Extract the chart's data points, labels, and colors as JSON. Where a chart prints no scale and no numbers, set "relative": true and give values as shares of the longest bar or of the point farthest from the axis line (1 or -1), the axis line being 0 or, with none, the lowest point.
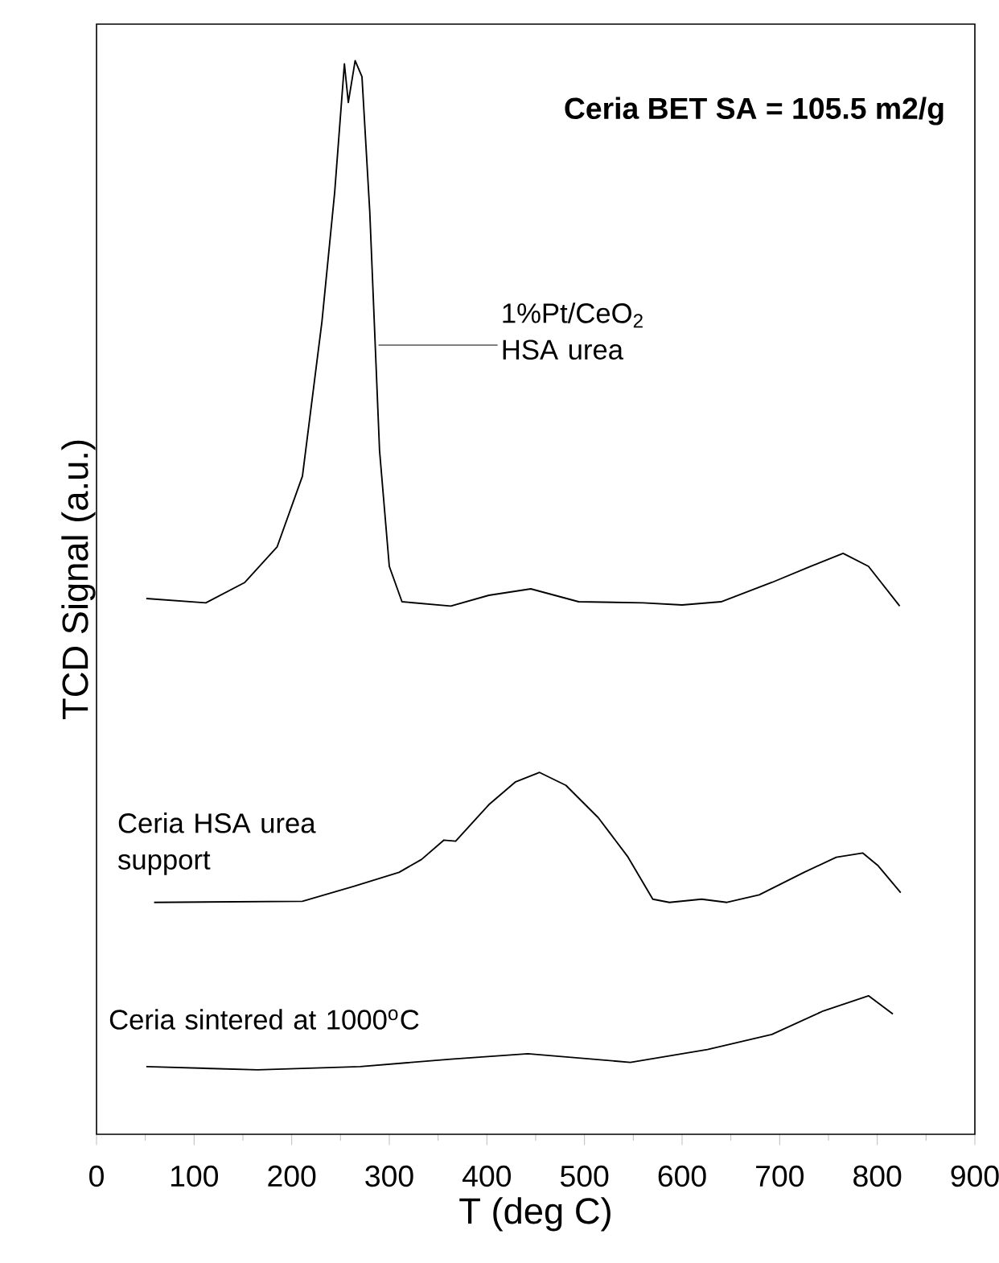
{
  "chart_data": {
    "type": "line",
    "xlabel": "T (deg C)",
    "ylabel": "TCD Signal (a.u.)",
    "relative": true,
    "annotations": [
      "Ceria BET SA = 105.5 m2/g"
    ],
    "xlim": [
      0,
      900
    ],
    "xticks": [
      0,
      100,
      200,
      300,
      400,
      500,
      600,
      700,
      800,
      900
    ],
    "series": [
      {
        "name": "1%Pt/CeO$_{2}$ HSA urea",
        "color": "#000000",
        "x": [
          51,
          112,
          152,
          185,
          211,
          231,
          244,
          254,
          258,
          265,
          272,
          280,
          290,
          300,
          313,
          363,
          402,
          445,
          494,
          560,
          600,
          640,
          692,
          732,
          765,
          791,
          823
        ],
        "values": [
          0.499,
          0.495,
          0.514,
          0.547,
          0.613,
          0.757,
          0.877,
          0.997,
          0.961,
          1,
          0.985,
          0.859,
          0.637,
          0.529,
          0.496,
          0.492,
          0.502,
          0.508,
          0.496,
          0.495,
          0.493,
          0.496,
          0.514,
          0.529,
          0.541,
          0.529,
          0.492
        ]
      },
      {
        "name": "Ceria HSA urea support",
        "color": "#000000",
        "x": [
          59,
          211,
          264,
          310,
          333,
          356,
          368,
          402,
          429,
          454,
          481,
          514,
          544,
          570,
          587,
          620,
          646,
          679,
          725,
          758,
          785,
          801,
          824
        ],
        "values": [
          0.216,
          0.217,
          0.231,
          0.244,
          0.256,
          0.274,
          0.273,
          0.307,
          0.328,
          0.337,
          0.325,
          0.295,
          0.259,
          0.219,
          0.216,
          0.219,
          0.216,
          0.223,
          0.244,
          0.258,
          0.262,
          0.25,
          0.225
        ]
      },
      {
        "name": "Ceria sintered at 1000$^{o}$C",
        "color": "#000000",
        "x": [
          51,
          165,
          270,
          363,
          442,
          547,
          626,
          692,
          745,
          791,
          816
        ],
        "values": [
          0.063,
          0.06,
          0.063,
          0.07,
          0.075,
          0.067,
          0.079,
          0.093,
          0.115,
          0.129,
          0.112
        ]
      }
    ]
  }
}
